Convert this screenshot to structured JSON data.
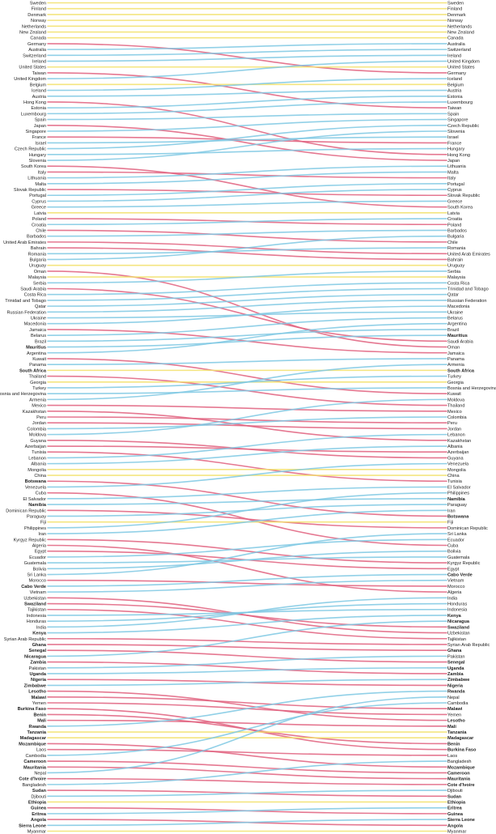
{
  "chart_data": {
    "type": "slope",
    "colors": {
      "up": "#7ec8e3",
      "down": "#e0607e",
      "same": "#f2e06a"
    },
    "left_labels": [
      "Sweden",
      "Finland",
      "Denmark",
      "Norway",
      "Netherlands",
      "New Zealand",
      "Canada",
      "Germany",
      "Australia",
      "Switzerland",
      "Ireland",
      "United States",
      "Taiwan",
      "United Kingdom",
      "Belgium",
      "Iceland",
      "Austria",
      "Hong Kong",
      "Estonia",
      "Luxembourg",
      "Spain",
      "Japan",
      "Singapore",
      "France",
      "Israel",
      "Czech Republic",
      "Hungary",
      "Slovenia",
      "South Korea",
      "Italy",
      "Lithuania",
      "Malta",
      "Slovak Republic",
      "Portugal",
      "Cyprus",
      "Greece",
      "Latvia",
      "Poland",
      "Croatia",
      "Chile",
      "Barbados",
      "United Arab Emirates",
      "Bahrain",
      "Romania",
      "Bulgaria",
      "Uruguay",
      "Oman",
      "Malaysia",
      "Serbia",
      "Saudi Arabia",
      "Costa Rica",
      "Trinidad and Tobago",
      "Qatar",
      "Russian Federation",
      "Ukraine",
      "Macedonia",
      "Jamaica",
      "Belarus",
      "Brazil",
      "Mauritius",
      "Argentina",
      "Kuwait",
      "Panama",
      "South Africa",
      "Thailand",
      "Georgia",
      "Turkey",
      "Bosnia and Herzegovina",
      "Armenia",
      "Mexico",
      "Kazakhstan",
      "Peru",
      "Jordan",
      "Colombia",
      "Moldova",
      "Guyana",
      "Azerbaijan",
      "Tunisia",
      "Lebanon",
      "Albania",
      "Mongolia",
      "China",
      "Botswana",
      "Venezuela",
      "Cuba",
      "El Salvador",
      "Namibia",
      "Dominican Republic",
      "Paraguay",
      "Fiji",
      "Philippines",
      "Iran",
      "Kyrgyz Republic",
      "Algeria",
      "Egypt",
      "Ecuador",
      "Guatemala",
      "Bolivia",
      "Sri Lanka",
      "Morocco",
      "Cabo Verde",
      "Vietnam",
      "Uzbekistan",
      "Swaziland",
      "Tajikistan",
      "Indonesia",
      "Honduras",
      "India",
      "Kenya",
      "Syrian Arab Republic",
      "Ghana",
      "Senegal",
      "Nicaragua",
      "Zambia",
      "Pakistan",
      "Uganda",
      "Nigeria",
      "Zimbabwe",
      "Lesotho",
      "Malawi",
      "Yemen",
      "Burkina Faso",
      "Benin",
      "Mali",
      "Rwanda",
      "Tanzania",
      "Madagascar",
      "Mozambique",
      "Laos",
      "Cambodia",
      "Cameroon",
      "Mauritania",
      "Nepal",
      "Cote d'Ivoire",
      "Bangladesh",
      "Sudan",
      "Djibouti",
      "Ethiopia",
      "Guinea",
      "Eritrea",
      "Angola",
      "Sierra Leone",
      "Myanmar"
    ],
    "right_labels": [
      "Sweden",
      "Finland",
      "Denmark",
      "Norway",
      "Netherlands",
      "New Zealand",
      "Canada",
      "Australia",
      "Switzerland",
      "Ireland",
      "United Kingdom",
      "United States",
      "Germany",
      "Iceland",
      "Belgium",
      "Austria",
      "Estonia",
      "Luxembourg",
      "Taiwan",
      "Spain",
      "Singapore",
      "Czech Republic",
      "Slovenia",
      "Israel",
      "France",
      "Hungary",
      "Hong Kong",
      "Japan",
      "Lithuania",
      "Malta",
      "Italy",
      "Portugal",
      "Cyprus",
      "Slovak Republic",
      "Greece",
      "South Korea",
      "Latvia",
      "Croatia",
      "Poland",
      "Barbados",
      "Bulgaria",
      "Chile",
      "Romania",
      "United Arab Emirates",
      "Bahrain",
      "Uruguay",
      "Serbia",
      "Malaysia",
      "Costa Rica",
      "Trinidad and Tobago",
      "Qatar",
      "Russian Federation",
      "Macedonia",
      "Ukraine",
      "Belarus",
      "Argentina",
      "Brazil",
      "Mauritius",
      "Saudi Arabia",
      "Oman",
      "Jamaica",
      "Panama",
      "Armenia",
      "South Africa",
      "Turkey",
      "Georgia",
      "Bosnia and Herzegovina",
      "Kuwait",
      "Moldova",
      "Thailand",
      "Mexico",
      "Colombia",
      "Peru",
      "Jordan",
      "Lebanon",
      "Kazakhstan",
      "Albania",
      "Azerbaijan",
      "Guyana",
      "Venezuela",
      "Mongolia",
      "China",
      "Tunisia",
      "El Salvador",
      "Philippines",
      "Namibia",
      "Paraguay",
      "Iran",
      "Botswana",
      "Fiji",
      "Dominican Republic",
      "Sri Lanka",
      "Ecuador",
      "Cuba",
      "Bolivia",
      "Guatemala",
      "Kyrgyz Republic",
      "Egypt",
      "Cabo Verde",
      "Vietnam",
      "Morocco",
      "Algeria",
      "India",
      "Honduras",
      "Indonesia",
      "Kenya",
      "Nicaragua",
      "Swaziland",
      "Uzbekistan",
      "Tajikistan",
      "Syrian Arab Republic",
      "Ghana",
      "Pakistan",
      "Senegal",
      "Uganda",
      "Zambia",
      "Zimbabwe",
      "Nigeria",
      "Rwanda",
      "Nepal",
      "Cambodia",
      "Malawi",
      "Yemen",
      "Lesotho",
      "Mali",
      "Tanzania",
      "Madagascar",
      "Benin",
      "Burkina Faso",
      "Laos",
      "Bangladesh",
      "Mozambique",
      "Cameroon",
      "Mauritania",
      "Cote d'Ivoire",
      "Djibouti",
      "Sudan",
      "Ethiopia",
      "Eritrea",
      "Guinea",
      "Sierra Leone",
      "Angola",
      "Myanmar"
    ],
    "bold_labels": [
      "Mauritius",
      "South Africa",
      "Botswana",
      "Namibia",
      "Cabo Verde",
      "Swaziland",
      "Kenya",
      "Ghana",
      "Senegal",
      "Nicaragua",
      "Zambia",
      "Uganda",
      "Nigeria",
      "Zimbabwe",
      "Lesotho",
      "Malawi",
      "Burkina Faso",
      "Benin",
      "Mali",
      "Rwanda",
      "Tanzania",
      "Madagascar",
      "Mozambique",
      "Cameroon",
      "Mauritania",
      "Cote d'Ivoire",
      "Sudan",
      "Ethiopia",
      "Guinea",
      "Eritrea",
      "Angola",
      "Sierra Leone"
    ]
  }
}
